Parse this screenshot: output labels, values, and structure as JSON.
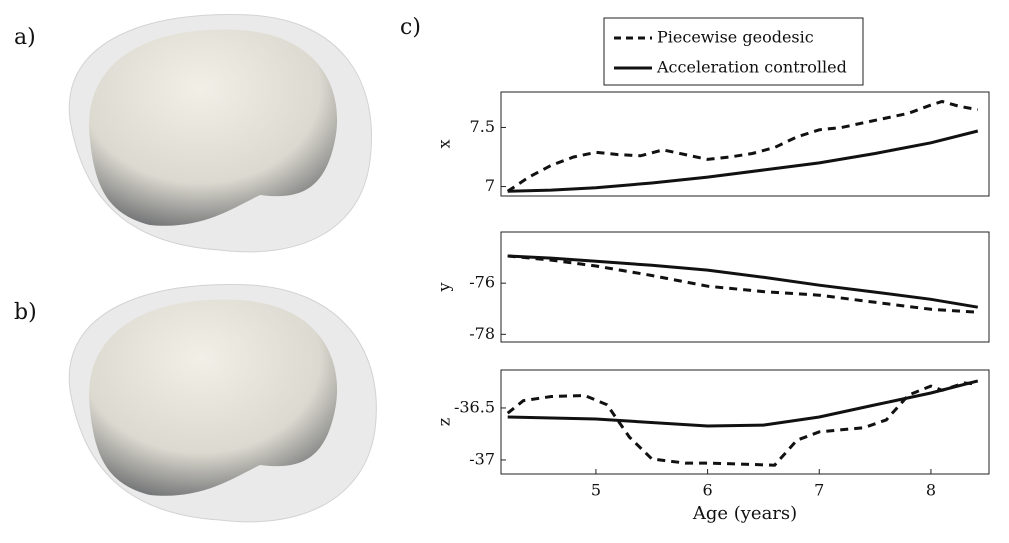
{
  "panel_labels": [
    "a)",
    "b)",
    "c)"
  ],
  "chart_data": [
    {
      "type": "line",
      "ylabel": "x",
      "xlim": [
        4.15,
        8.52
      ],
      "ylim": [
        6.92,
        7.8
      ],
      "yticks": [
        7,
        7.5
      ],
      "series": [
        {
          "name": "Piecewise geodesic",
          "color": "#111111",
          "dash": true,
          "x": [
            4.21,
            4.4,
            4.6,
            4.8,
            5.0,
            5.2,
            5.4,
            5.6,
            5.8,
            6.0,
            6.2,
            6.4,
            6.6,
            6.8,
            7.0,
            7.2,
            7.4,
            7.6,
            7.8,
            8.0,
            8.1,
            8.25,
            8.42
          ],
          "values": [
            6.96,
            7.08,
            7.18,
            7.25,
            7.29,
            7.27,
            7.26,
            7.31,
            7.27,
            7.23,
            7.25,
            7.28,
            7.33,
            7.42,
            7.48,
            7.5,
            7.54,
            7.58,
            7.62,
            7.69,
            7.72,
            7.68,
            7.65
          ]
        },
        {
          "name": "Acceleration controlled",
          "color": "#111111",
          "dash": false,
          "x": [
            4.21,
            4.6,
            5,
            5.5,
            6,
            6.5,
            7,
            7.5,
            8,
            8.42
          ],
          "values": [
            6.96,
            6.97,
            6.99,
            7.03,
            7.08,
            7.14,
            7.2,
            7.28,
            7.37,
            7.47
          ]
        }
      ]
    },
    {
      "type": "line",
      "ylabel": "y",
      "xlim": [
        4.15,
        8.52
      ],
      "ylim": [
        -78.3,
        -74.0
      ],
      "yticks": [
        -78,
        -76
      ],
      "series": [
        {
          "color": "#111111",
          "dash": true,
          "x": [
            4.21,
            4.6,
            5,
            5.5,
            6,
            6.5,
            7,
            7.5,
            8,
            8.42
          ],
          "values": [
            -74.94,
            -75.1,
            -75.33,
            -75.7,
            -76.12,
            -76.33,
            -76.47,
            -76.75,
            -77.02,
            -77.14
          ]
        },
        {
          "color": "#111111",
          "dash": false,
          "x": [
            4.21,
            4.6,
            5,
            5.5,
            6,
            6.5,
            7,
            7.5,
            8,
            8.42
          ],
          "values": [
            -74.94,
            -75.02,
            -75.14,
            -75.3,
            -75.49,
            -75.77,
            -76.08,
            -76.35,
            -76.63,
            -76.94
          ]
        }
      ]
    },
    {
      "type": "line",
      "ylabel": "z",
      "xlabel": "Age (years)",
      "xlim": [
        4.15,
        8.52
      ],
      "ylim": [
        -37.135,
        -36.135
      ],
      "xticks": [
        5,
        6,
        7,
        8
      ],
      "yticks": [
        -37,
        -36.5
      ],
      "series": [
        {
          "color": "#111111",
          "dash": true,
          "x": [
            4.21,
            4.35,
            4.6,
            4.9,
            5.1,
            5.3,
            5.5,
            5.8,
            6.0,
            6.3,
            6.6,
            6.8,
            7.0,
            7.4,
            7.6,
            7.8,
            8.0,
            8.1,
            8.3,
            8.42
          ],
          "values": [
            -36.55,
            -36.43,
            -36.39,
            -36.38,
            -36.47,
            -36.78,
            -36.99,
            -37.03,
            -37.03,
            -37.04,
            -37.05,
            -36.81,
            -36.73,
            -36.69,
            -36.615,
            -36.375,
            -36.29,
            -36.33,
            -36.26,
            -36.27
          ]
        },
        {
          "color": "#111111",
          "dash": false,
          "x": [
            4.21,
            5,
            6,
            6.5,
            7,
            7.5,
            8,
            8.42
          ],
          "values": [
            -36.587,
            -36.606,
            -36.673,
            -36.665,
            -36.587,
            -36.471,
            -36.356,
            -36.24
          ]
        }
      ]
    }
  ]
}
